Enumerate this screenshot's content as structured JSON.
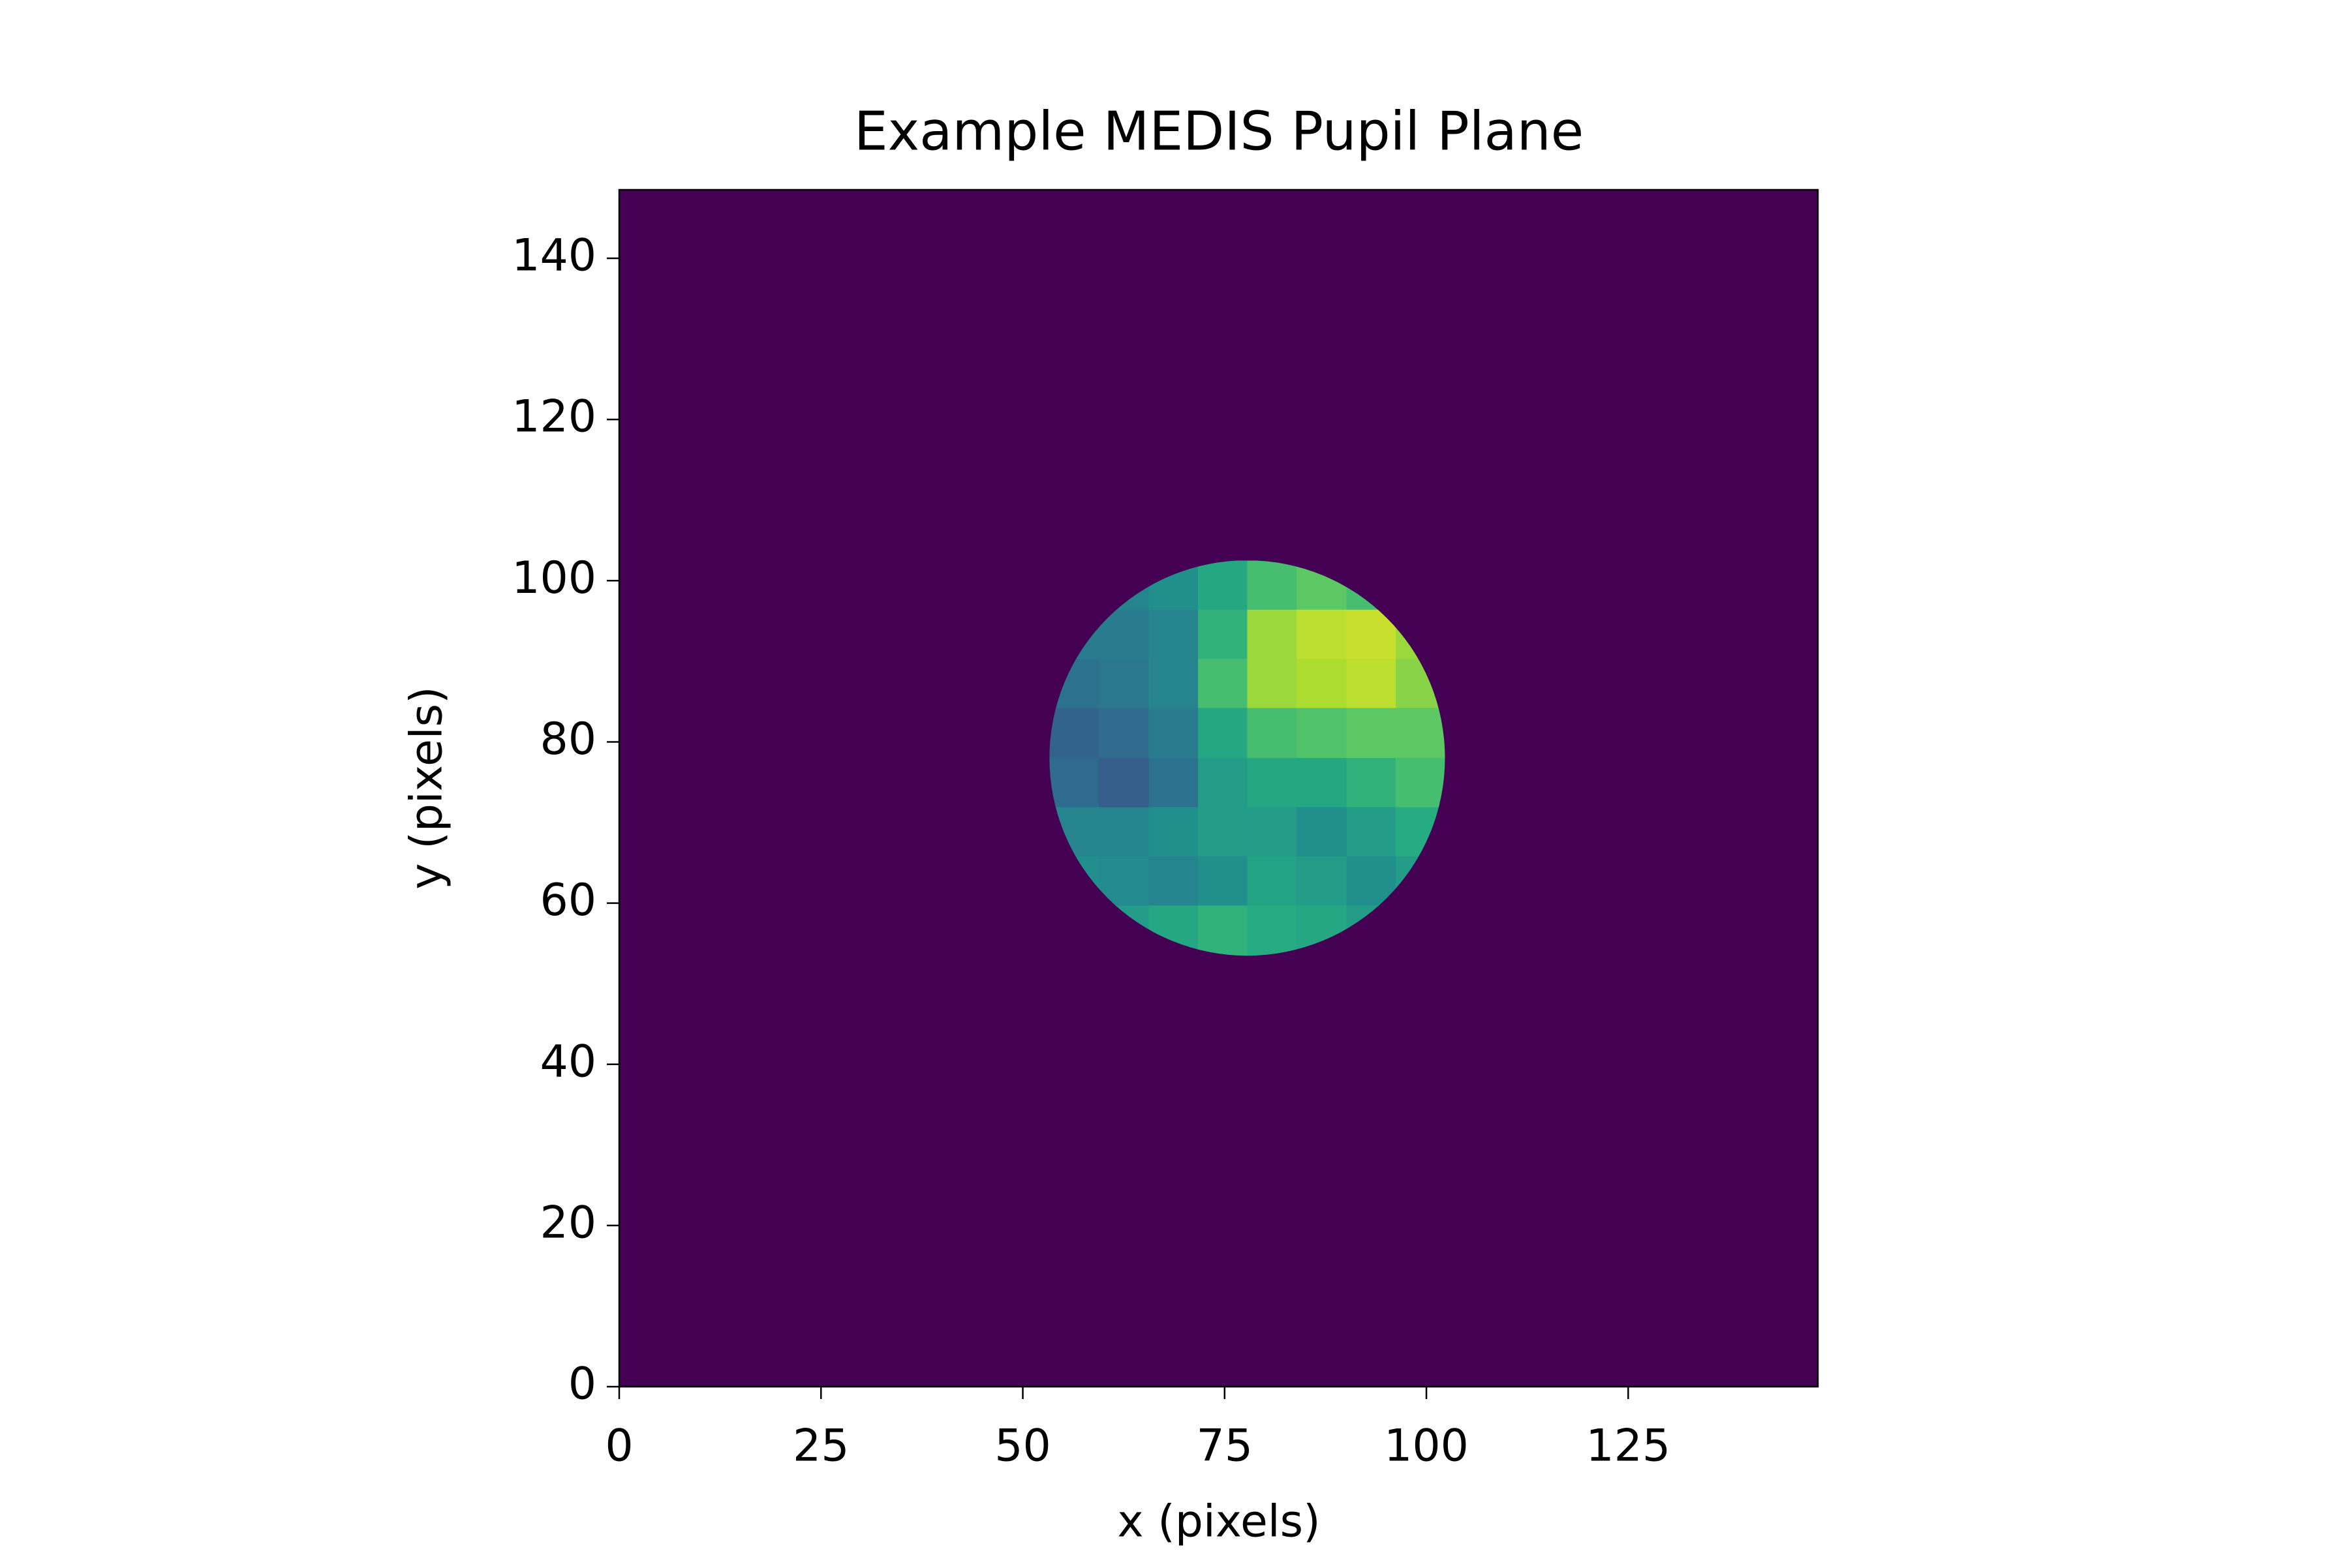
{
  "chart_data": {
    "type": "image",
    "title": "Example MEDIS Pupil Plane",
    "xlabel": "x (pixels)",
    "ylabel": "y (pixels)",
    "colormap": "viridis",
    "zlim": [
      0,
      1
    ],
    "background_value": 0,
    "xlim": [
      0,
      148.5
    ],
    "ylim": [
      0,
      148.5
    ],
    "xticks": [
      0,
      25,
      50,
      75,
      100,
      125
    ],
    "yticks": [
      0,
      20,
      40,
      60,
      80,
      100,
      120,
      140
    ],
    "pupil": {
      "cx": 77.8,
      "cy": 78,
      "r": 24.5
    },
    "x_edges": [
      53.3,
      59.4,
      65.6,
      71.7,
      77.8,
      83.9,
      90.1,
      96.2,
      102.3
    ],
    "y_edges": [
      102.5,
      96.4,
      90.3,
      84.2,
      78,
      71.9,
      65.8,
      59.7,
      53.5
    ],
    "z": [
      [
        0.45,
        0.45,
        0.5,
        0.6,
        0.7,
        0.75,
        0.7,
        0.7
      ],
      [
        0.42,
        0.42,
        0.45,
        0.65,
        0.85,
        0.9,
        0.92,
        0.85
      ],
      [
        0.38,
        0.4,
        0.45,
        0.7,
        0.85,
        0.88,
        0.9,
        0.82
      ],
      [
        0.32,
        0.35,
        0.42,
        0.6,
        0.7,
        0.72,
        0.75,
        0.75
      ],
      [
        0.35,
        0.3,
        0.38,
        0.55,
        0.6,
        0.6,
        0.65,
        0.7
      ],
      [
        0.45,
        0.45,
        0.5,
        0.55,
        0.55,
        0.5,
        0.55,
        0.62
      ],
      [
        0.5,
        0.48,
        0.45,
        0.5,
        0.58,
        0.55,
        0.5,
        0.55
      ],
      [
        0.55,
        0.55,
        0.6,
        0.65,
        0.62,
        0.6,
        0.55,
        0.55
      ]
    ]
  }
}
